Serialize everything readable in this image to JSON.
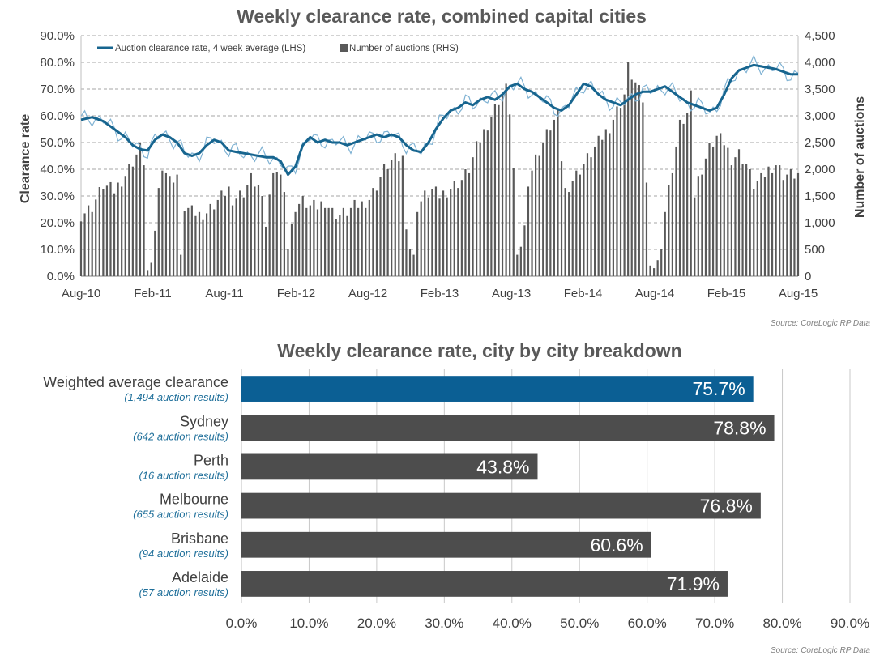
{
  "colors": {
    "line_thick": "#17658f",
    "line_thin": "#7fb2d3",
    "bars_top": "#595959",
    "bar_weighted": "#0b5f94",
    "bar_city": "#4d4d4d",
    "grid": "#a6a6a6",
    "subtitle_blue": "#1f6f9a"
  },
  "chart_data": [
    {
      "type": "line+bar",
      "title": "Weekly clearance rate, combined capital cities",
      "ylabel_left": "Clearance rate",
      "ylabel_right": "Number of auctions",
      "ylim_left": [
        0,
        90
      ],
      "ylim_right": [
        0,
        4500
      ],
      "yticks_left": [
        "0.0%",
        "10.0%",
        "20.0%",
        "30.0%",
        "40.0%",
        "50.0%",
        "60.0%",
        "70.0%",
        "80.0%",
        "90.0%"
      ],
      "yticks_right": [
        "0",
        "500",
        "1,000",
        "1,500",
        "2,000",
        "2,500",
        "3,000",
        "3,500",
        "4,000",
        "4,500"
      ],
      "x_ticks": [
        "Aug-10",
        "Feb-11",
        "Aug-11",
        "Feb-12",
        "Aug-12",
        "Feb-13",
        "Aug-13",
        "Feb-14",
        "Aug-14",
        "Feb-15",
        "Aug-15"
      ],
      "grid": true,
      "legend_position": "top-left",
      "series": [
        {
          "name": "Auction clearance rate, 4 week average (LHS)",
          "axis": "left",
          "anchors": [
            [
              0,
              58.5
            ],
            [
              3,
              59.5
            ],
            [
              6,
              58
            ],
            [
              9,
              55
            ],
            [
              12,
              52
            ],
            [
              14,
              49
            ],
            [
              16,
              47.5
            ],
            [
              18,
              47
            ],
            [
              20,
              51
            ],
            [
              22,
              53
            ],
            [
              24,
              52
            ],
            [
              26,
              50
            ],
            [
              28,
              46
            ],
            [
              30,
              45
            ],
            [
              32,
              46
            ],
            [
              34,
              49
            ],
            [
              36,
              51
            ],
            [
              38,
              50
            ],
            [
              40,
              47
            ],
            [
              42,
              46.5
            ],
            [
              44,
              46
            ],
            [
              46,
              45.5
            ],
            [
              48,
              45
            ],
            [
              50,
              44.5
            ],
            [
              52,
              44.5
            ],
            [
              54,
              43
            ],
            [
              56,
              38
            ],
            [
              58,
              41
            ],
            [
              60,
              49
            ],
            [
              62,
              52
            ],
            [
              64,
              50
            ],
            [
              66,
              51
            ],
            [
              68,
              50
            ],
            [
              70,
              50
            ],
            [
              72,
              49
            ],
            [
              74,
              50
            ],
            [
              76,
              51
            ],
            [
              78,
              52
            ],
            [
              80,
              53
            ],
            [
              82,
              52
            ],
            [
              84,
              53
            ],
            [
              86,
              52
            ],
            [
              88,
              49
            ],
            [
              90,
              47
            ],
            [
              92,
              46.5
            ],
            [
              94,
              50
            ],
            [
              96,
              55
            ],
            [
              98,
              59
            ],
            [
              100,
              62
            ],
            [
              102,
              63
            ],
            [
              104,
              65
            ],
            [
              106,
              64
            ],
            [
              108,
              66
            ],
            [
              110,
              67
            ],
            [
              112,
              66
            ],
            [
              114,
              68
            ],
            [
              116,
              71
            ],
            [
              118,
              72
            ],
            [
              120,
              70
            ],
            [
              122,
              69
            ],
            [
              124,
              67
            ],
            [
              126,
              65
            ],
            [
              128,
              63
            ],
            [
              130,
              62
            ],
            [
              132,
              64
            ],
            [
              134,
              68
            ],
            [
              136,
              72
            ],
            [
              138,
              71
            ],
            [
              140,
              68
            ],
            [
              142,
              66
            ],
            [
              144,
              65
            ],
            [
              146,
              64
            ],
            [
              148,
              66
            ],
            [
              150,
              68
            ],
            [
              152,
              69
            ],
            [
              154,
              69
            ],
            [
              156,
              70
            ],
            [
              158,
              71
            ],
            [
              160,
              69
            ],
            [
              162,
              67
            ],
            [
              164,
              65
            ],
            [
              166,
              64
            ],
            [
              168,
              63
            ],
            [
              170,
              62
            ],
            [
              172,
              63
            ],
            [
              174,
              68
            ],
            [
              176,
              74
            ],
            [
              178,
              77
            ],
            [
              180,
              78
            ],
            [
              182,
              79
            ],
            [
              184,
              78.5
            ],
            [
              186,
              78
            ],
            [
              188,
              77.5
            ],
            [
              190,
              76.5
            ],
            [
              192,
              75.5
            ],
            [
              194,
              75.5
            ]
          ]
        },
        {
          "name": "Number of auctions (RHS)",
          "axis": "right",
          "anchors": [
            [
              0,
              1150
            ],
            [
              3,
              1300
            ],
            [
              6,
              1700
            ],
            [
              9,
              1600
            ],
            [
              12,
              1900
            ],
            [
              14,
              2150
            ],
            [
              16,
              2400
            ],
            [
              17,
              2150
            ],
            [
              18,
              100
            ],
            [
              19,
              250
            ],
            [
              20,
              900
            ],
            [
              21,
              1600
            ],
            [
              22,
              2100
            ],
            [
              24,
              1800
            ],
            [
              26,
              1900
            ],
            [
              27,
              400
            ],
            [
              28,
              1300
            ],
            [
              30,
              1200
            ],
            [
              32,
              1150
            ],
            [
              34,
              1200
            ],
            [
              36,
              1350
            ],
            [
              38,
              1500
            ],
            [
              40,
              1650
            ],
            [
              41,
              1200
            ],
            [
              42,
              1500
            ],
            [
              44,
              1600
            ],
            [
              46,
              1850
            ],
            [
              48,
              1700
            ],
            [
              49,
              1400
            ],
            [
              50,
              1000
            ],
            [
              51,
              1500
            ],
            [
              52,
              1800
            ],
            [
              53,
              2000
            ],
            [
              55,
              1700
            ],
            [
              56,
              500
            ],
            [
              57,
              900
            ],
            [
              58,
              1300
            ],
            [
              60,
              1400
            ],
            [
              62,
              1300
            ],
            [
              64,
              1300
            ],
            [
              66,
              1400
            ],
            [
              68,
              1200
            ],
            [
              70,
              1150
            ],
            [
              72,
              1200
            ],
            [
              74,
              1300
            ],
            [
              76,
              1350
            ],
            [
              78,
              1450
            ],
            [
              80,
              1700
            ],
            [
              82,
              2000
            ],
            [
              84,
              2150
            ],
            [
              86,
              2200
            ],
            [
              87,
              2200
            ],
            [
              88,
              1000
            ],
            [
              89,
              500
            ],
            [
              90,
              400
            ],
            [
              91,
              1300
            ],
            [
              93,
              1500
            ],
            [
              95,
              1600
            ],
            [
              97,
              1500
            ],
            [
              99,
              1600
            ],
            [
              101,
              1700
            ],
            [
              103,
              1800
            ],
            [
              105,
              2000
            ],
            [
              107,
              2400
            ],
            [
              109,
              2700
            ],
            [
              111,
              3000
            ],
            [
              113,
              3300
            ],
            [
              115,
              3500
            ],
            [
              116,
              3100
            ],
            [
              117,
              2000
            ],
            [
              118,
              400
            ],
            [
              119,
              600
            ],
            [
              120,
              900
            ],
            [
              121,
              1800
            ],
            [
              123,
              2200
            ],
            [
              125,
              2500
            ],
            [
              127,
              2800
            ],
            [
              129,
              3000
            ],
            [
              130,
              2200
            ],
            [
              131,
              1600
            ],
            [
              133,
              1800
            ],
            [
              135,
              2000
            ],
            [
              137,
              2200
            ],
            [
              139,
              2400
            ],
            [
              141,
              2600
            ],
            [
              143,
              2800
            ],
            [
              145,
              3100
            ],
            [
              147,
              3400
            ],
            [
              148,
              3900
            ],
            [
              150,
              3600
            ],
            [
              152,
              3300
            ],
            [
              153,
              1700
            ],
            [
              154,
              200
            ],
            [
              155,
              150
            ],
            [
              156,
              300
            ],
            [
              157,
              600
            ],
            [
              158,
              1200
            ],
            [
              160,
              2000
            ],
            [
              162,
              2800
            ],
            [
              164,
              3000
            ],
            [
              165,
              3600
            ],
            [
              166,
              1500
            ],
            [
              167,
              1800
            ],
            [
              168,
              2000
            ],
            [
              170,
              2400
            ],
            [
              172,
              2600
            ],
            [
              174,
              2500
            ],
            [
              176,
              2200
            ],
            [
              178,
              2300
            ],
            [
              180,
              2100
            ],
            [
              182,
              1700
            ],
            [
              184,
              1800
            ],
            [
              186,
              2000
            ],
            [
              188,
              2100
            ],
            [
              190,
              1900
            ]
          ]
        }
      ],
      "source": "Source: CoreLogic RP Data"
    },
    {
      "type": "bar",
      "orientation": "horizontal",
      "title": "Weekly clearance rate, city by city breakdown",
      "xlim": [
        0,
        90
      ],
      "xticks": [
        "0.0%",
        "10.0%",
        "20.0%",
        "30.0%",
        "40.0%",
        "50.0%",
        "60.0%",
        "70.0%",
        "80.0%",
        "90.0%"
      ],
      "grid": true,
      "categories": [
        {
          "name": "Weighted average clearance",
          "sub": "(1,494 auction results)",
          "value": 75.7,
          "label": "75.7%",
          "highlight": true
        },
        {
          "name": "Sydney",
          "sub": "(642 auction results)",
          "value": 78.8,
          "label": "78.8%",
          "highlight": false
        },
        {
          "name": "Perth",
          "sub": "(16 auction results)",
          "value": 43.8,
          "label": "43.8%",
          "highlight": false
        },
        {
          "name": "Melbourne",
          "sub": "(655 auction results)",
          "value": 76.8,
          "label": "76.8%",
          "highlight": false
        },
        {
          "name": "Brisbane",
          "sub": "(94 auction results)",
          "value": 60.6,
          "label": "60.6%",
          "highlight": false
        },
        {
          "name": "Adelaide",
          "sub": "(57 auction results)",
          "value": 71.9,
          "label": "71.9%",
          "highlight": false
        }
      ],
      "source": "Source: CoreLogic RP Data"
    }
  ]
}
